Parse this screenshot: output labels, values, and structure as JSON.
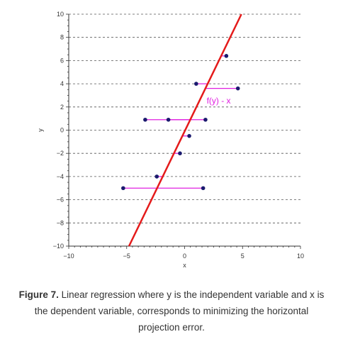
{
  "chart_data": {
    "type": "scatter",
    "xlabel": "x",
    "ylabel": "y",
    "xlim": [
      -10,
      10
    ],
    "ylim": [
      -10,
      10
    ],
    "x_ticks": [
      -10,
      -5,
      0,
      5,
      10
    ],
    "y_ticks": [
      -10,
      -8,
      -6,
      -4,
      -2,
      0,
      2,
      4,
      6,
      8,
      10
    ],
    "grid": "horizontal dashed",
    "points": [
      {
        "x": 3.6,
        "y": 6.4
      },
      {
        "x": 1.0,
        "y": 4.0
      },
      {
        "x": 4.6,
        "y": 3.6
      },
      {
        "x": -3.4,
        "y": 0.9
      },
      {
        "x": -1.4,
        "y": 0.9
      },
      {
        "x": 1.8,
        "y": 0.9
      },
      {
        "x": 0.4,
        "y": -0.5
      },
      {
        "x": -0.4,
        "y": -2.0
      },
      {
        "x": -2.4,
        "y": -4.0
      },
      {
        "x": -5.3,
        "y": -5.0
      },
      {
        "x": 1.6,
        "y": -5.0
      }
    ],
    "regression_line": {
      "x": [
        -4.8,
        4.9
      ],
      "y": [
        -10,
        10
      ],
      "color": "#e41a1a"
    },
    "projection_color": "#e020e0",
    "point_color": "#1a1a6e",
    "annotation": "f(y) - x"
  },
  "caption": {
    "label": "Figure 7.",
    "text": " Linear regression where y is the independent variable and x is the dependent variable, corresponds to minimizing the horizontal projection error."
  }
}
